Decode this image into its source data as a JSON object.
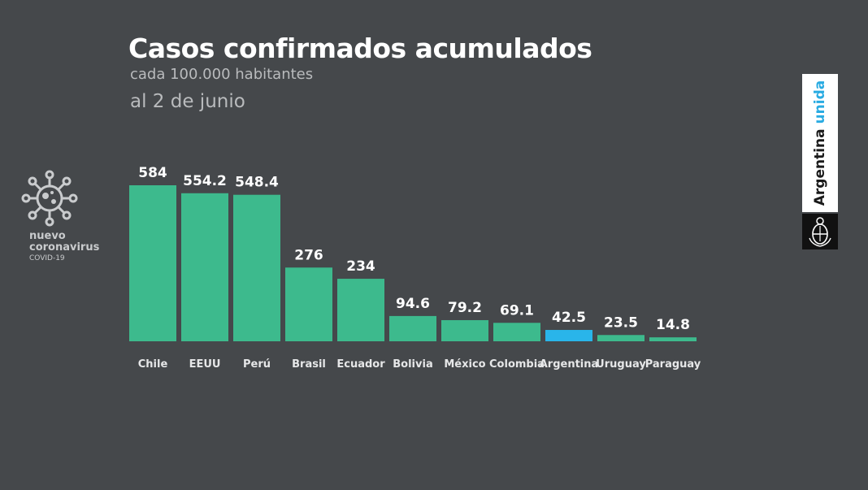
{
  "header": {
    "title": "Casos confirmados acumulados",
    "subtitle": "cada 100.000 habitantes",
    "date": "al 2 de junio"
  },
  "logo": {
    "line1": "nuevo",
    "line2": "coronavirus",
    "line3": "COVID-19",
    "icon": "virus-icon"
  },
  "brand": {
    "text_main": "Argentina",
    "text_accent": "unida",
    "accent_color": "#29abe2",
    "emblem_icon": "coat-of-arms-icon"
  },
  "colors": {
    "background": "#45484b",
    "bar": "#3dba8d",
    "highlight_bar": "#29b5ea"
  },
  "chart_data": {
    "type": "bar",
    "title": "Casos confirmados acumulados",
    "subtitle": "cada 100.000 habitantes",
    "categories": [
      "Chile",
      "EEUU",
      "Perú",
      "Brasil",
      "Ecuador",
      "Bolivia",
      "México",
      "Colombia",
      "Argentina",
      "Uruguay",
      "Paraguay"
    ],
    "values": [
      584,
      554.2,
      548.4,
      276,
      234,
      94.6,
      79.2,
      69.1,
      42.5,
      23.5,
      14.8
    ],
    "value_labels": [
      "584",
      "554.2",
      "548.4",
      "276",
      "234",
      "94.6",
      "79.2",
      "69.1",
      "42.5",
      "23.5",
      "14.8"
    ],
    "highlight": "Argentina",
    "ylim": [
      0,
      584
    ],
    "grid": false,
    "legend": "none"
  }
}
